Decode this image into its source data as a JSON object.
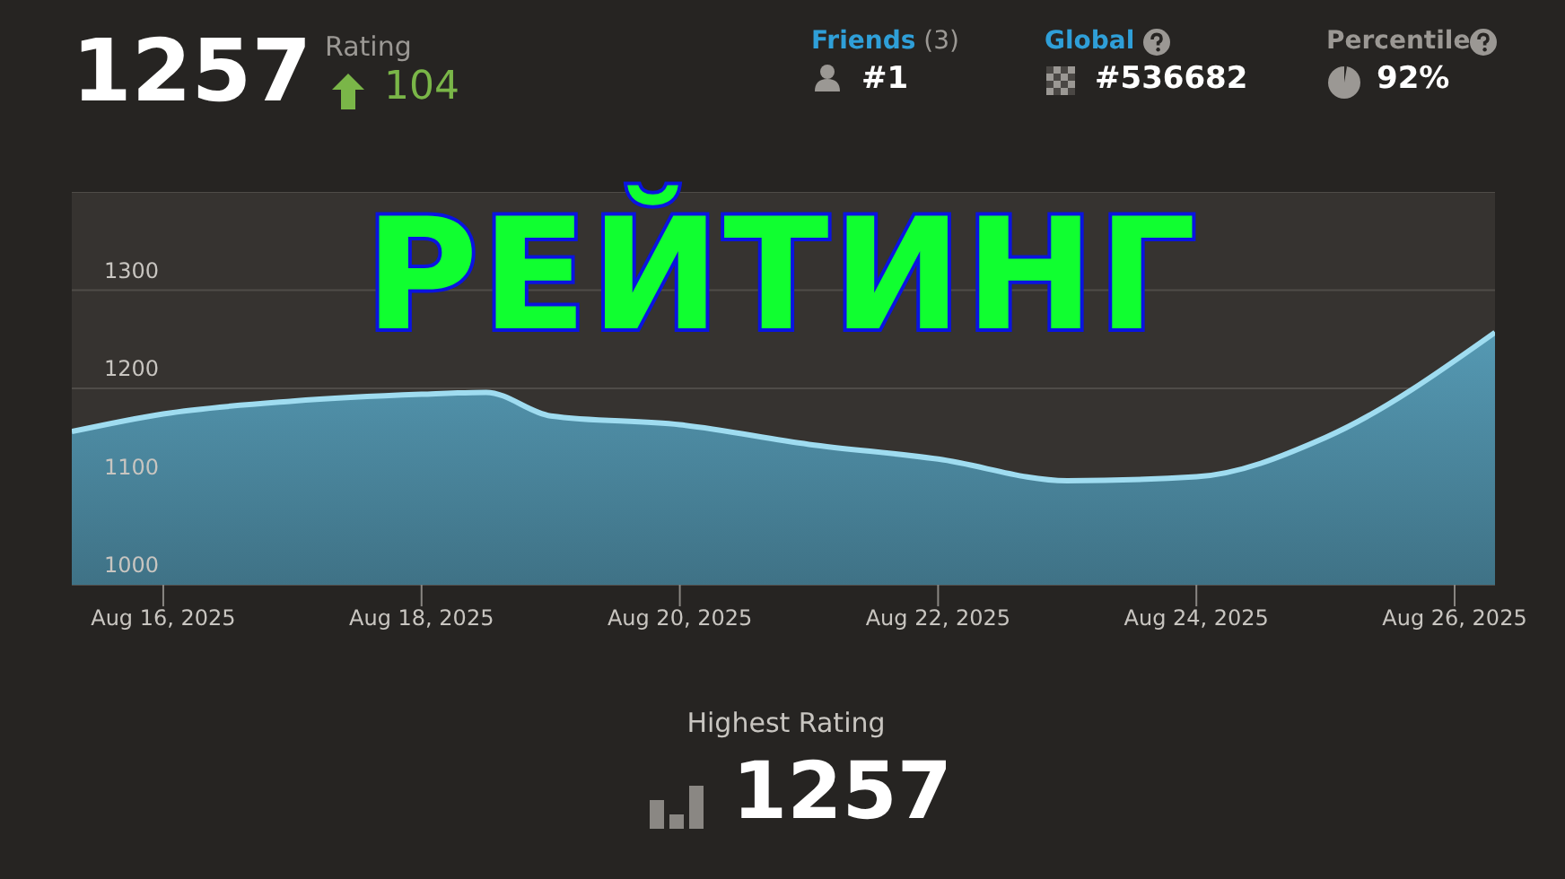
{
  "chart_data": {
    "type": "area",
    "title": "РЕЙТИНГ",
    "annotations": [
      "1257",
      "Rating",
      "104",
      "Friends",
      "(3)",
      "#1",
      "Global",
      "#536682",
      "Percentile",
      "92%",
      "Highest Rating",
      "1257"
    ],
    "x": [
      "2025-08-15T07:00",
      "2025-08-16",
      "2025-08-17",
      "2025-08-18",
      "2025-08-18T12:00",
      "2025-08-19",
      "2025-08-20",
      "2025-08-21",
      "2025-08-22",
      "2025-08-23",
      "2025-08-24",
      "2025-08-25",
      "2025-08-26T07:30"
    ],
    "series": [
      {
        "color": "#9fdcf0",
        "values": [
          1156,
          1174,
          1187,
          1194,
          1196,
          1172,
          1163,
          1143,
          1128,
          1106,
          1110,
          1150,
          1257
        ]
      }
    ],
    "xlim": [
      "2025-08-15T07:00",
      "2025-08-26T07:30"
    ],
    "xticks": [
      {
        "value": "2025-08-16",
        "label": "Aug 16, 2025"
      },
      {
        "value": "2025-08-18",
        "label": "Aug 18, 2025"
      },
      {
        "value": "2025-08-20",
        "label": "Aug 20, 2025"
      },
      {
        "value": "2025-08-22",
        "label": "Aug 22, 2025"
      },
      {
        "value": "2025-08-24",
        "label": "Aug 24, 2025"
      },
      {
        "value": "2025-08-26",
        "label": "Aug 26, 2025"
      }
    ],
    "ylim": [
      1000,
      1400
    ],
    "yticks": [
      1000,
      1100,
      1200,
      1300
    ],
    "grid": "y",
    "legend": false
  }
}
